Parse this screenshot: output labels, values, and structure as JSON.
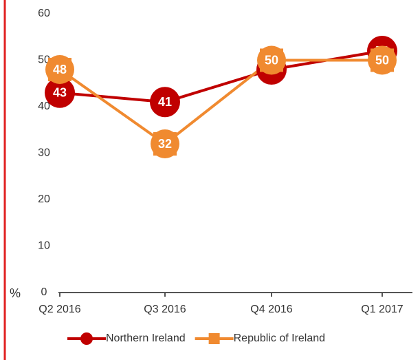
{
  "chart_data": {
    "type": "line",
    "y_label": "%",
    "categories": [
      "Q2 2016",
      "Q3 2016",
      "Q4 2016",
      "Q1 2017"
    ],
    "series": [
      {
        "name": "Northern Ireland",
        "color": "#c00000",
        "marker": "circle",
        "values": [
          43,
          41,
          48,
          52
        ]
      },
      {
        "name": "Republic of Ireland",
        "color": "#f08a30",
        "marker": "square",
        "values": [
          48,
          32,
          50,
          50
        ]
      }
    ],
    "ylim": [
      0,
      60
    ],
    "yticks": [
      0,
      10,
      20,
      30,
      40,
      50,
      60
    ],
    "grid": false
  }
}
